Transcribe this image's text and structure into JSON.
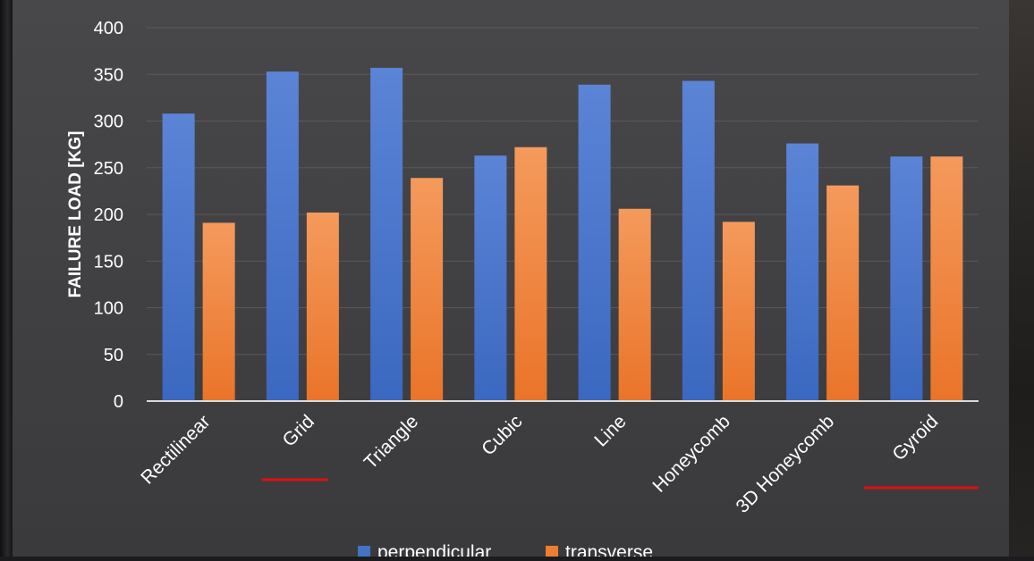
{
  "chart_data": {
    "type": "bar",
    "ylabel": "FAILURE LOAD [KG]",
    "xlabel": "",
    "ylim": [
      0,
      400
    ],
    "yticks": [
      0,
      50,
      100,
      150,
      200,
      250,
      300,
      350,
      400
    ],
    "grid": true,
    "legend_position": "bottom-center",
    "categories": [
      "Rectilinear",
      "Grid",
      "Triangle",
      "Cubic",
      "Line",
      "Honeycomb",
      "3D Honeycomb",
      "Gyroid"
    ],
    "highlighted_categories": [
      "Grid",
      "Gyroid"
    ],
    "series": [
      {
        "name": "perpendicular",
        "color": "#4472c4",
        "values": [
          308,
          353,
          357,
          263,
          339,
          343,
          276,
          262
        ]
      },
      {
        "name": "transverse",
        "color": "#ed7d31",
        "values": [
          191,
          202,
          239,
          272,
          206,
          192,
          231,
          262
        ]
      }
    ],
    "highlight_color": "#e01010"
  }
}
